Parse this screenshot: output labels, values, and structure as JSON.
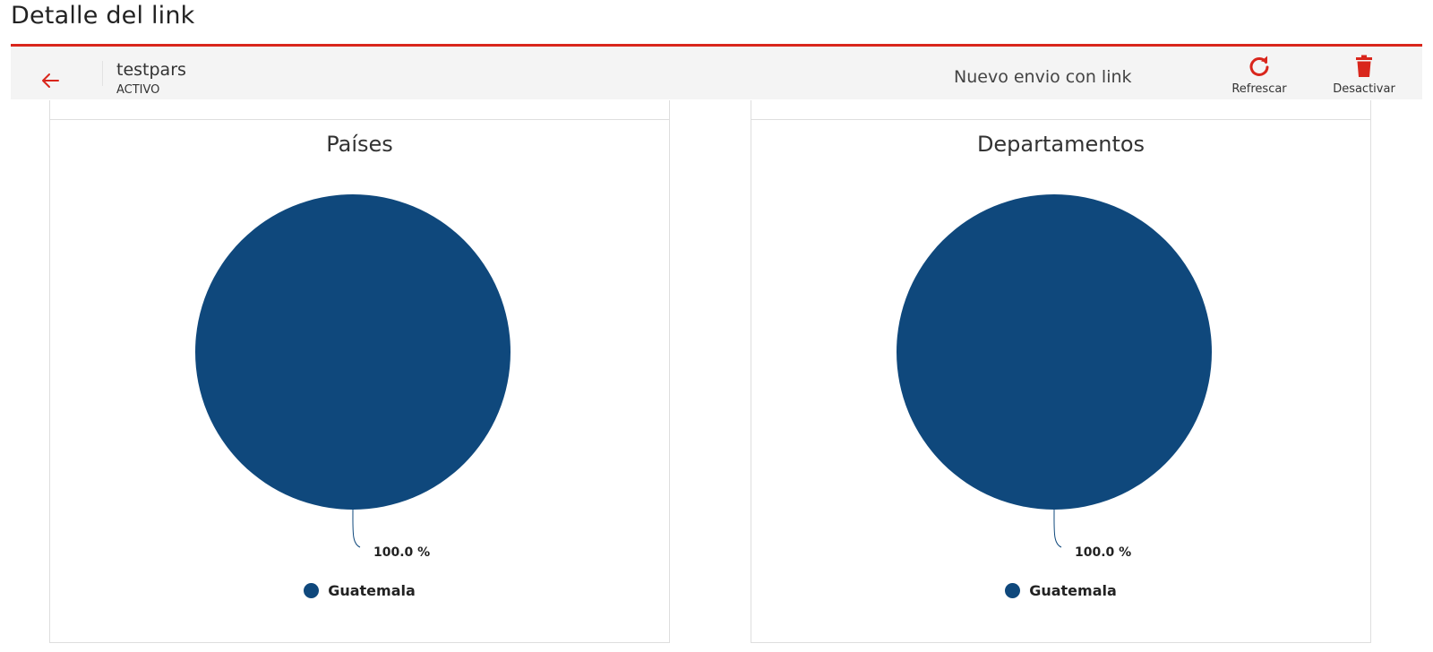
{
  "page": {
    "title": "Detalle del link"
  },
  "toolbar": {
    "link_name": "testpars",
    "link_status": "ACTIVO",
    "new_send_label": "Nuevo envio con link",
    "refresh_label": "Refrescar",
    "deactivate_label": "Desactivar",
    "back_icon": "arrow-left-icon",
    "refresh_icon": "refresh-icon",
    "deactivate_icon": "trash-icon"
  },
  "colors": {
    "accent": "#d9261c",
    "series": "#0f487c",
    "toolbar_bg": "#f4f4f4"
  },
  "chart_data": [
    {
      "type": "pie",
      "title": "Países",
      "slices": [
        {
          "label": "Guatemala",
          "value": 100.0,
          "pct_label": "100.0 %"
        }
      ],
      "legend": "bottom"
    },
    {
      "type": "pie",
      "title": "Departamentos",
      "slices": [
        {
          "label": "Guatemala",
          "value": 100.0,
          "pct_label": "100.0 %"
        }
      ],
      "legend": "bottom"
    }
  ]
}
